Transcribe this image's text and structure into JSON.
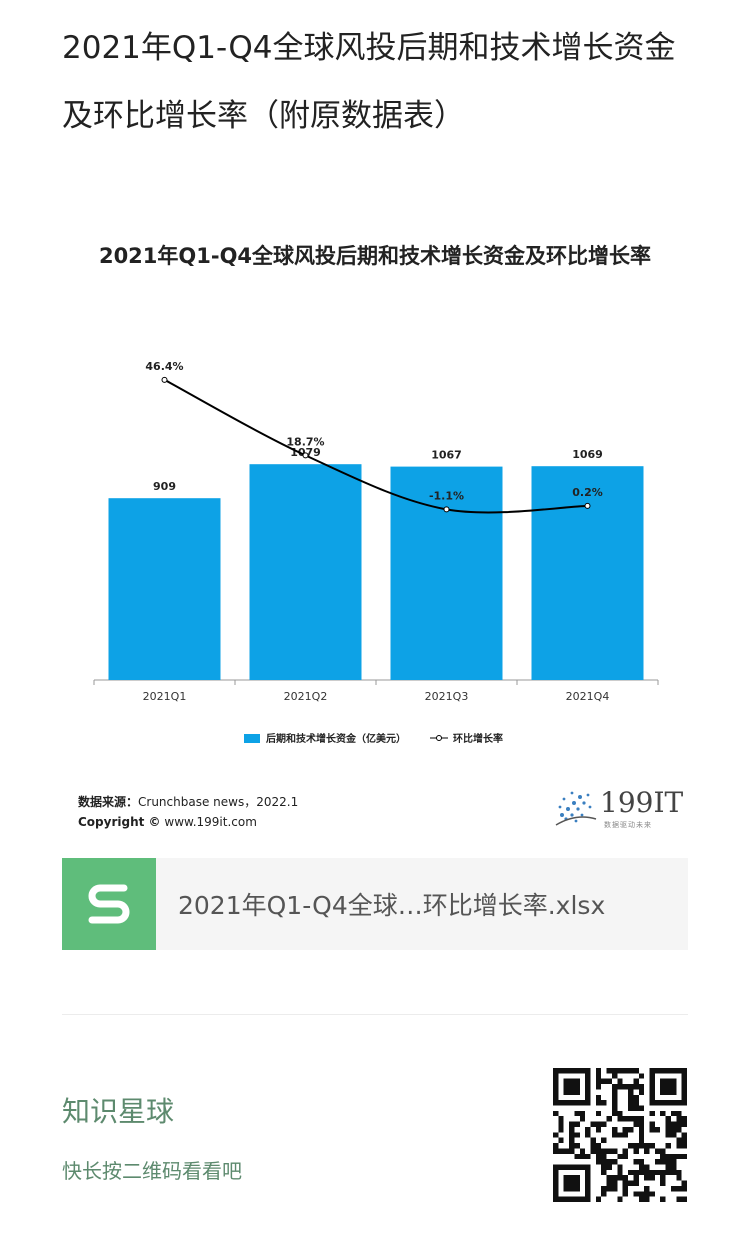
{
  "article": {
    "title": "2021年Q1-Q4全球风投后期和技术增长资金及环比增长率（附原数据表）"
  },
  "chart_data": {
    "type": "bar",
    "title": "2021年Q1-Q4全球风投后期和技术增长资金及环比增长率",
    "categories": [
      "2021Q1",
      "2021Q2",
      "2021Q3",
      "2021Q4"
    ],
    "series": [
      {
        "name": "后期和技术增长资金（亿美元）",
        "type": "bar",
        "values": [
          909,
          1079,
          1067,
          1069
        ],
        "labels": [
          "909",
          "1079",
          "1067",
          "1069"
        ],
        "color": "#0da2e6"
      },
      {
        "name": "环比增长率",
        "type": "line",
        "values": [
          46.4,
          18.7,
          -1.1,
          0.2
        ],
        "labels": [
          "46.4%",
          "18.7%",
          "-1.1%",
          "0.2%"
        ],
        "color": "#000000"
      }
    ],
    "legend_position": "bottom",
    "grid": false
  },
  "source": {
    "label": "数据来源：",
    "text": "Crunchbase news，2022.1",
    "copyright_label": "Copyright ©",
    "copyright_site": "www.199it.com"
  },
  "logo": {
    "text": "199IT",
    "tagline": "数据驱动未来"
  },
  "file": {
    "name": "2021年Q1-Q4全球…环比增长率.xlsx"
  },
  "community": {
    "name": "知识星球",
    "hint": "快长按二维码看看吧"
  }
}
